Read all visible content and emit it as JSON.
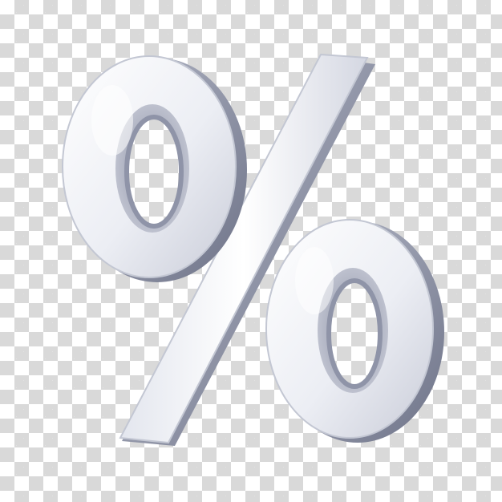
{
  "image": {
    "subject_icon": "percent-sign-icon",
    "background_icon": "transparency-checkerboard",
    "colors": {
      "checker_light": "#ffffff",
      "checker_dark": "#d9d9d9",
      "symbol_face": "#f4f5f9",
      "symbol_side": "#8f94a8",
      "symbol_shadow": "#5f6478"
    }
  }
}
